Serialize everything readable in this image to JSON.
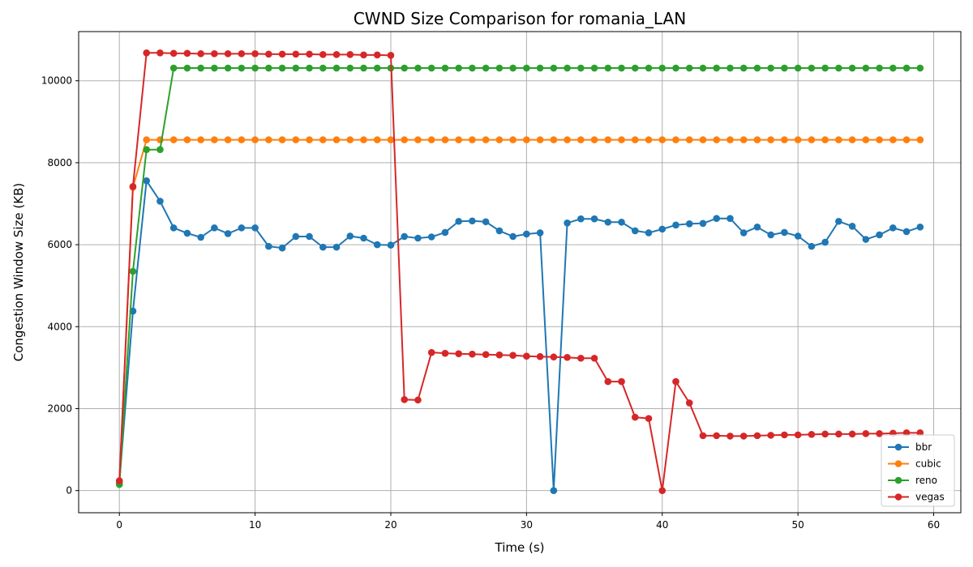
{
  "chart_data": {
    "type": "line",
    "title": "CWND Size Comparison for romania_LAN",
    "xlabel": "Time (s)",
    "ylabel": "Congestion Window Size (KB)",
    "xlim": [
      -3,
      62
    ],
    "ylim": [
      -540,
      11200
    ],
    "xticks": [
      0,
      10,
      20,
      30,
      40,
      50,
      60
    ],
    "yticks": [
      0,
      2000,
      4000,
      6000,
      8000,
      10000
    ],
    "grid": true,
    "legend_position": "lower-right",
    "x": [
      0,
      1,
      2,
      3,
      4,
      5,
      6,
      7,
      8,
      9,
      10,
      11,
      12,
      13,
      14,
      15,
      16,
      17,
      18,
      19,
      20,
      21,
      22,
      23,
      24,
      25,
      26,
      27,
      28,
      29,
      30,
      31,
      32,
      33,
      34,
      35,
      36,
      37,
      38,
      39,
      40,
      41,
      42,
      43,
      44,
      45,
      46,
      47,
      48,
      49,
      50,
      51,
      52,
      53,
      54,
      55,
      56,
      57,
      58,
      59
    ],
    "series": [
      {
        "name": "bbr",
        "color": "#1f77b4",
        "values": [
          200,
          4380,
          7560,
          7060,
          6410,
          6280,
          6180,
          6410,
          6270,
          6410,
          6410,
          5960,
          5920,
          6200,
          6200,
          5940,
          5940,
          6210,
          6160,
          6000,
          5990,
          6200,
          6160,
          6190,
          6300,
          6570,
          6580,
          6560,
          6340,
          6200,
          6260,
          6290,
          0,
          6530,
          6630,
          6630,
          6550,
          6550,
          6340,
          6290,
          6380,
          6480,
          6510,
          6520,
          6640,
          6640,
          6290,
          6430,
          6240,
          6300,
          6210,
          5960,
          6060,
          6570,
          6450,
          6130,
          6240,
          6410,
          6320,
          6430
        ]
      },
      {
        "name": "cubic",
        "color": "#ff7f0e",
        "values": [
          200,
          7400,
          8560,
          8560,
          8560,
          8560,
          8560,
          8560,
          8560,
          8560,
          8560,
          8560,
          8560,
          8560,
          8560,
          8560,
          8560,
          8560,
          8560,
          8560,
          8560,
          8560,
          8560,
          8560,
          8560,
          8560,
          8560,
          8560,
          8560,
          8560,
          8560,
          8560,
          8560,
          8560,
          8560,
          8560,
          8560,
          8560,
          8560,
          8560,
          8560,
          8560,
          8560,
          8560,
          8560,
          8560,
          8560,
          8560,
          8560,
          8560,
          8560,
          8560,
          8560,
          8560,
          8560,
          8560,
          8560,
          8560,
          8560,
          8560
        ]
      },
      {
        "name": "reno",
        "color": "#2ca02c",
        "values": [
          150,
          5350,
          8320,
          8320,
          10310,
          10310,
          10310,
          10310,
          10310,
          10310,
          10310,
          10310,
          10310,
          10310,
          10310,
          10310,
          10310,
          10310,
          10310,
          10310,
          10310,
          10310,
          10310,
          10310,
          10310,
          10310,
          10310,
          10310,
          10310,
          10310,
          10310,
          10310,
          10310,
          10310,
          10310,
          10310,
          10310,
          10310,
          10310,
          10310,
          10310,
          10310,
          10310,
          10310,
          10310,
          10310,
          10310,
          10310,
          10310,
          10310,
          10310,
          10310,
          10310,
          10310,
          10310,
          10310,
          10310,
          10310,
          10310,
          10310
        ]
      },
      {
        "name": "vegas",
        "color": "#d62728",
        "values": [
          240,
          7420,
          10680,
          10680,
          10670,
          10670,
          10660,
          10660,
          10660,
          10660,
          10660,
          10650,
          10650,
          10650,
          10650,
          10640,
          10640,
          10640,
          10630,
          10630,
          10620,
          2220,
          2210,
          3370,
          3350,
          3340,
          3330,
          3320,
          3310,
          3300,
          3280,
          3270,
          3260,
          3250,
          3230,
          3230,
          2660,
          2660,
          1790,
          1760,
          0,
          2660,
          2140,
          1340,
          1340,
          1330,
          1330,
          1340,
          1350,
          1360,
          1360,
          1370,
          1380,
          1380,
          1380,
          1390,
          1390,
          1400,
          1410,
          1410
        ]
      }
    ]
  }
}
